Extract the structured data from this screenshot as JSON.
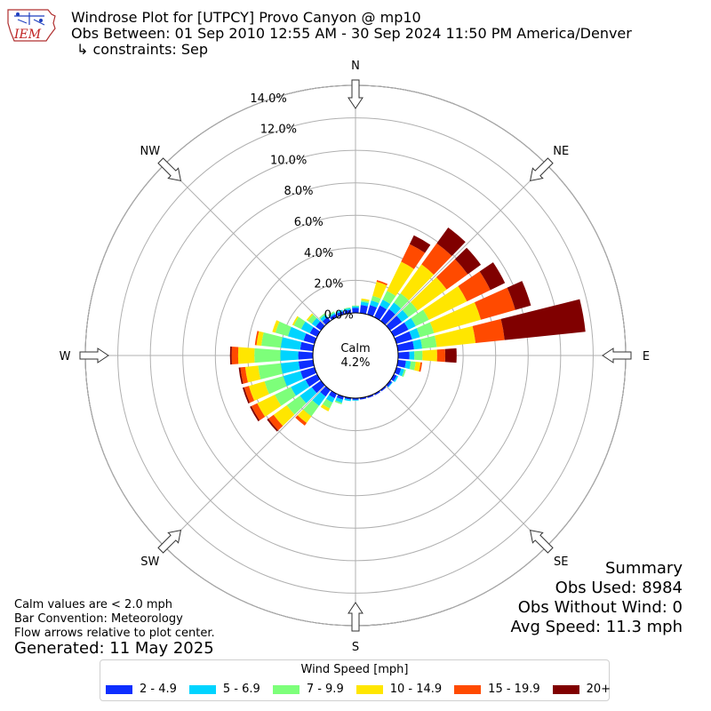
{
  "header": {
    "logo_text": "IEM",
    "title": "Windrose Plot for [UTPCY] Provo Canyon @ mp10",
    "obs_between": "Obs Between: 01 Sep 2010 12:55 AM - 30 Sep 2024 11:50 PM America/Denver",
    "constraints": "↳ constraints: Sep"
  },
  "notes": {
    "calm_note": "Calm values are < 2.0 mph",
    "bar_convention": "Bar Convention: Meteorology",
    "flow_arrows": "Flow arrows relative to plot center.",
    "generated": "Generated: 11 May 2025"
  },
  "summary": {
    "title": "Summary",
    "obs_used": "Obs Used: 8984",
    "obs_without_wind": "Obs Without Wind: 0",
    "avg_speed": "Avg Speed: 11.3 mph"
  },
  "legend": {
    "title": "Wind Speed [mph]",
    "items": [
      {
        "label": "2 - 4.9",
        "color": "#0d2eff"
      },
      {
        "label": "5 - 6.9",
        "color": "#00d4ff"
      },
      {
        "label": "7 - 9.9",
        "color": "#7dff7a"
      },
      {
        "label": "10 - 14.9",
        "color": "#ffe600"
      },
      {
        "label": "15 - 19.9",
        "color": "#ff4a00"
      },
      {
        "label": "20+",
        "color": "#800000"
      }
    ]
  },
  "chart_data": {
    "type": "windrose",
    "calm_label": "Calm",
    "calm_value": "4.2%",
    "radial_ticks": [
      "0.0%",
      "2.0%",
      "4.0%",
      "6.0%",
      "8.0%",
      "10.0%",
      "12.0%",
      "14.0%"
    ],
    "radial_max_percent": 14.0,
    "calm_percent": 4.2,
    "compass_labels": [
      "N",
      "NE",
      "E",
      "SE",
      "S",
      "SW",
      "W",
      "NW"
    ],
    "speed_bins": [
      "2 - 4.9",
      "5 - 6.9",
      "7 - 9.9",
      "10 - 14.9",
      "15 - 19.9",
      "20+"
    ],
    "colors": [
      "#0d2eff",
      "#00d4ff",
      "#7dff7a",
      "#ffe600",
      "#ff4a00",
      "#800000"
    ],
    "direction_sector_width_deg": 10,
    "sectors": [
      {
        "dir": 0,
        "values": [
          0.3,
          0.1,
          0.05,
          0,
          0,
          0
        ]
      },
      {
        "dir": 10,
        "values": [
          0.5,
          0.2,
          0.1,
          0.1,
          0,
          0
        ]
      },
      {
        "dir": 20,
        "values": [
          0.6,
          0.3,
          0.3,
          0.9,
          0.1,
          0
        ]
      },
      {
        "dir": 30,
        "values": [
          0.8,
          0.4,
          0.6,
          2.0,
          1.2,
          0.6
        ]
      },
      {
        "dir": 40,
        "values": [
          0.9,
          0.5,
          0.7,
          2.2,
          1.6,
          1.2
        ]
      },
      {
        "dir": 50,
        "values": [
          0.9,
          0.5,
          0.7,
          2.2,
          1.6,
          1.0
        ]
      },
      {
        "dir": 60,
        "values": [
          1.0,
          0.5,
          0.9,
          2.6,
          1.6,
          1.0
        ]
      },
      {
        "dir": 70,
        "values": [
          1.0,
          0.5,
          0.9,
          3.0,
          2.2,
          1.0
        ]
      },
      {
        "dir": 80,
        "values": [
          1.0,
          0.5,
          0.9,
          2.4,
          1.8,
          5.0
        ]
      },
      {
        "dir": 90,
        "values": [
          0.7,
          0.3,
          0.5,
          0.9,
          0.5,
          0.7
        ]
      },
      {
        "dir": 100,
        "values": [
          0.5,
          0.3,
          0.3,
          0.3,
          0.1,
          0
        ]
      },
      {
        "dir": 110,
        "values": [
          0.3,
          0.2,
          0.1,
          0,
          0,
          0
        ]
      },
      {
        "dir": 120,
        "values": [
          0.2,
          0.1,
          0,
          0,
          0,
          0
        ]
      },
      {
        "dir": 130,
        "values": [
          0.15,
          0.05,
          0,
          0,
          0,
          0
        ]
      },
      {
        "dir": 140,
        "values": [
          0.1,
          0,
          0,
          0,
          0,
          0
        ]
      },
      {
        "dir": 150,
        "values": [
          0.1,
          0,
          0,
          0,
          0,
          0
        ]
      },
      {
        "dir": 160,
        "values": [
          0.1,
          0,
          0,
          0,
          0,
          0
        ]
      },
      {
        "dir": 170,
        "values": [
          0.1,
          0,
          0,
          0,
          0,
          0
        ]
      },
      {
        "dir": 180,
        "values": [
          0.1,
          0.05,
          0,
          0,
          0,
          0
        ]
      },
      {
        "dir": 190,
        "values": [
          0.1,
          0.1,
          0,
          0,
          0,
          0
        ]
      },
      {
        "dir": 200,
        "values": [
          0.2,
          0.2,
          0.1,
          0,
          0,
          0
        ]
      },
      {
        "dir": 210,
        "values": [
          0.3,
          0.3,
          0.4,
          0.2,
          0,
          0
        ]
      },
      {
        "dir": 220,
        "values": [
          0.5,
          0.7,
          0.8,
          0.5,
          0.2,
          0
        ]
      },
      {
        "dir": 230,
        "values": [
          0.7,
          0.9,
          1.0,
          1.0,
          0.4,
          0.1
        ]
      },
      {
        "dir": 240,
        "values": [
          0.8,
          1.0,
          1.1,
          1.2,
          0.4,
          0.1
        ]
      },
      {
        "dir": 250,
        "values": [
          0.9,
          1.1,
          1.2,
          1.0,
          0.3,
          0.1
        ]
      },
      {
        "dir": 260,
        "values": [
          0.9,
          1.1,
          1.4,
          0.8,
          0.3,
          0.1
        ]
      },
      {
        "dir": 270,
        "values": [
          0.9,
          1.1,
          1.6,
          1.0,
          0.4,
          0.1
        ]
      },
      {
        "dir": 280,
        "values": [
          0.8,
          1.2,
          1.2,
          0.3,
          0.1,
          0
        ]
      },
      {
        "dir": 290,
        "values": [
          0.7,
          1.0,
          0.8,
          0.2,
          0,
          0
        ]
      },
      {
        "dir": 300,
        "values": [
          0.5,
          0.6,
          0.5,
          0.1,
          0,
          0
        ]
      },
      {
        "dir": 310,
        "values": [
          0.4,
          0.3,
          0.3,
          0.1,
          0,
          0
        ]
      },
      {
        "dir": 320,
        "values": [
          0.3,
          0.2,
          0.1,
          0,
          0,
          0
        ]
      },
      {
        "dir": 330,
        "values": [
          0.2,
          0.1,
          0.1,
          0,
          0,
          0
        ]
      },
      {
        "dir": 340,
        "values": [
          0.2,
          0.1,
          0,
          0,
          0,
          0
        ]
      },
      {
        "dir": 350,
        "values": [
          0.2,
          0.1,
          0.05,
          0,
          0,
          0
        ]
      }
    ]
  }
}
